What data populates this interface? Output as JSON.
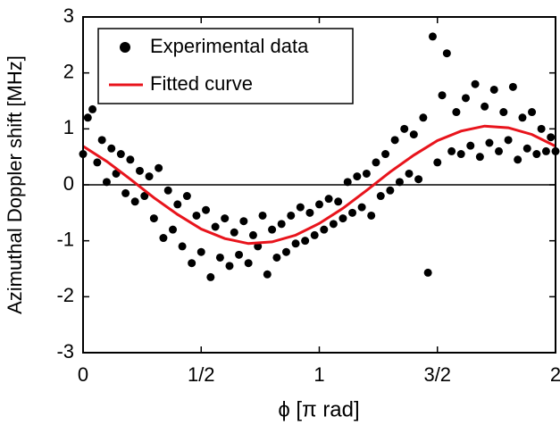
{
  "chart_data": {
    "type": "scatter",
    "xlabel": "ϕ [π rad]",
    "ylabel": "Azimuthal Doppler shift [MHz]",
    "xlim": [
      0,
      2
    ],
    "ylim": [
      -3,
      3
    ],
    "xticks": [
      0,
      {
        "value": 0.5,
        "label": "1/2"
      },
      1,
      {
        "value": 1.5,
        "label": "3/2"
      },
      2
    ],
    "yticks": [
      -3,
      -2,
      -1,
      0,
      1,
      2,
      3
    ],
    "legend": "upper left",
    "series": [
      {
        "name": "Experimental data",
        "type": "scatter",
        "color": "#000000",
        "x": [
          0,
          0.02,
          0.04,
          0.06,
          0.08,
          0.1,
          0.12,
          0.14,
          0.16,
          0.18,
          0.2,
          0.22,
          0.24,
          0.26,
          0.28,
          0.3,
          0.32,
          0.34,
          0.36,
          0.38,
          0.4,
          0.42,
          0.44,
          0.46,
          0.48,
          0.5,
          0.52,
          0.54,
          0.56,
          0.58,
          0.6,
          0.62,
          0.64,
          0.66,
          0.68,
          0.7,
          0.72,
          0.74,
          0.76,
          0.78,
          0.8,
          0.82,
          0.84,
          0.86,
          0.88,
          0.9,
          0.92,
          0.94,
          0.96,
          0.98,
          1,
          1.02,
          1.04,
          1.06,
          1.08,
          1.1,
          1.12,
          1.14,
          1.16,
          1.18,
          1.2,
          1.22,
          1.24,
          1.26,
          1.28,
          1.3,
          1.32,
          1.34,
          1.36,
          1.38,
          1.4,
          1.42,
          1.44,
          1.46,
          1.48,
          1.5,
          1.52,
          1.54,
          1.56,
          1.58,
          1.6,
          1.62,
          1.64,
          1.66,
          1.68,
          1.7,
          1.72,
          1.74,
          1.76,
          1.78,
          1.8,
          1.82,
          1.84,
          1.86,
          1.88,
          1.9,
          1.92,
          1.94,
          1.96,
          1.98,
          2
        ],
        "values": [
          0.55,
          1.2,
          1.35,
          0.4,
          0.8,
          0.05,
          0.65,
          0.2,
          0.55,
          -0.15,
          0.45,
          -0.3,
          0.25,
          -0.2,
          0.15,
          -0.6,
          0.3,
          -0.95,
          -0.1,
          -0.8,
          -0.35,
          -1.1,
          -0.2,
          -1.4,
          -0.55,
          -1.2,
          -0.45,
          -1.65,
          -0.75,
          -1.3,
          -0.6,
          -1.45,
          -0.85,
          -1.25,
          -0.65,
          -1.4,
          -0.9,
          -1.1,
          -0.55,
          -1.6,
          -0.8,
          -1.3,
          -0.7,
          -1.2,
          -0.55,
          -1.05,
          -0.4,
          -1,
          -0.5,
          -0.9,
          -0.35,
          -0.8,
          -0.25,
          -0.7,
          -0.3,
          -0.6,
          0.05,
          -0.5,
          0.15,
          -0.4,
          0.2,
          -0.55,
          0.4,
          -0.2,
          0.55,
          -0.1,
          0.8,
          0.05,
          1,
          0.2,
          0.9,
          0.1,
          1.2,
          -1.57,
          2.65,
          0.4,
          1.6,
          2.35,
          0.6,
          1.3,
          0.55,
          1.55,
          0.7,
          1.8,
          0.5,
          1.4,
          0.75,
          1.7,
          0.6,
          1.3,
          0.8,
          1.75,
          0.45,
          1.2,
          0.65,
          1.3,
          0.55,
          1,
          0.6,
          0.85,
          0.6
        ]
      },
      {
        "name": "Fitted curve",
        "type": "line",
        "color": "#e8141c",
        "x": [
          0,
          0.1,
          0.2,
          0.3,
          0.4,
          0.5,
          0.6,
          0.7,
          0.8,
          0.9,
          1,
          1.1,
          1.2,
          1.3,
          1.4,
          1.5,
          1.6,
          1.7,
          1.8,
          1.9,
          2
        ],
        "values": [
          0.69,
          0.42,
          0.1,
          -0.23,
          -0.53,
          -0.79,
          -0.96,
          -1.05,
          -1.02,
          -0.9,
          -0.69,
          -0.42,
          -0.1,
          0.23,
          0.53,
          0.79,
          0.96,
          1.05,
          1.02,
          0.9,
          0.69
        ]
      }
    ]
  }
}
